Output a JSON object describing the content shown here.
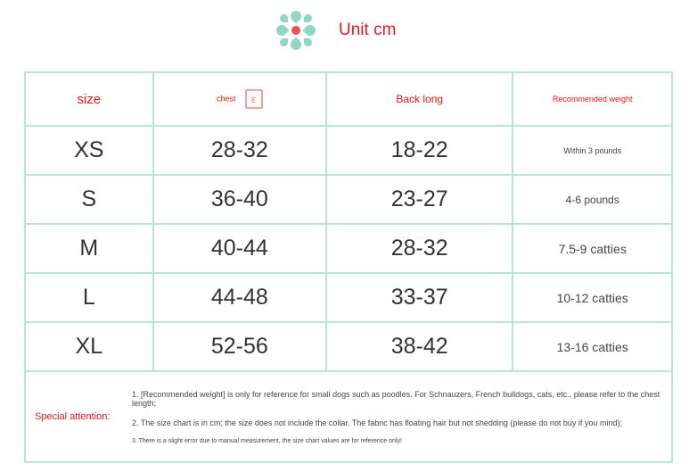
{
  "header": {
    "unit": "Unit cm",
    "icon": "flower-icon"
  },
  "table": {
    "columns": [
      "size",
      "chest",
      "Back long",
      "Recommended weight"
    ],
    "rows": [
      {
        "size": "XS",
        "chest": "28-32",
        "back": "18-22",
        "weight": "Within 3 pounds"
      },
      {
        "size": "S",
        "chest": "36-40",
        "back": "23-27",
        "weight": "4-6 pounds"
      },
      {
        "size": "M",
        "chest": "40-44",
        "back": "28-32",
        "weight": "7.5-9 catties"
      },
      {
        "size": "L",
        "chest": "44-48",
        "back": "33-37",
        "weight": "10-12 catties"
      },
      {
        "size": "XL",
        "chest": "52-56",
        "back": "38-42",
        "weight": "13-16 catties"
      }
    ]
  },
  "notes": {
    "label": "Special attention:",
    "items": [
      "1. [Recommended weight] is only for reference for small dogs such as poodles. For Schnauzers, French bulldogs, cats, etc., please refer to the chest length;",
      "2. The size chart is in cm; the size does not include the collar. The fabric has floating hair but not shedding (please do not buy if you mind);",
      "3. There is a slight error due to manual measurement, the size chart values are for reference only!"
    ]
  },
  "colors": {
    "accent": "#e81818",
    "border": "#b5e6d8",
    "flower": "#8fd6c4"
  }
}
